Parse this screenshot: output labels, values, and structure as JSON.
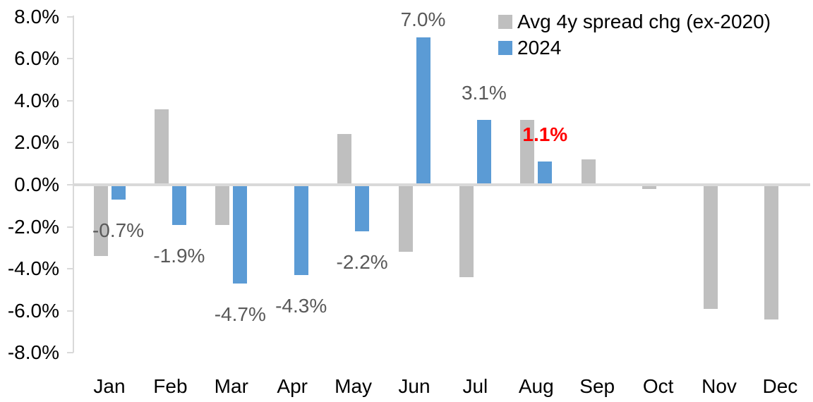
{
  "chart_data": {
    "type": "bar",
    "title": "",
    "xlabel": "",
    "ylabel": "",
    "categories": [
      "Jan",
      "Feb",
      "Mar",
      "Apr",
      "May",
      "Jun",
      "Jul",
      "Aug",
      "Sep",
      "Oct",
      "Nov",
      "Dec"
    ],
    "series": [
      {
        "name": "Avg 4y spread chg (ex-2020)",
        "color": "#BFBFBF",
        "values": [
          -3.4,
          3.6,
          -1.9,
          0.0,
          2.4,
          -3.2,
          -4.4,
          3.1,
          1.2,
          -0.2,
          -5.9,
          -6.4
        ]
      },
      {
        "name": "2024",
        "color": "#5B9BD5",
        "values": [
          -0.7,
          -1.9,
          -4.7,
          -4.3,
          -2.2,
          7.0,
          3.1,
          1.1,
          null,
          null,
          null,
          null
        ],
        "labels": [
          {
            "text": "-0.7%",
            "color": "#595959",
            "bold": false
          },
          {
            "text": "-1.9%",
            "color": "#595959",
            "bold": false
          },
          {
            "text": "-4.7%",
            "color": "#595959",
            "bold": false
          },
          {
            "text": "-4.3%",
            "color": "#595959",
            "bold": false
          },
          {
            "text": "-2.2%",
            "color": "#595959",
            "bold": false
          },
          {
            "text": "7.0%",
            "color": "#595959",
            "bold": false
          },
          {
            "text": "3.1%",
            "color": "#595959",
            "bold": false
          },
          {
            "text": "1.1%",
            "color": "#FF0000",
            "bold": true
          },
          null,
          null,
          null,
          null
        ]
      }
    ],
    "ylim": [
      -8,
      8
    ],
    "ytick_step": 2,
    "yticks": [
      {
        "value": 8,
        "label": "8.0%"
      },
      {
        "value": 6,
        "label": "6.0%"
      },
      {
        "value": 4,
        "label": "4.0%"
      },
      {
        "value": 2,
        "label": "2.0%"
      },
      {
        "value": 0,
        "label": "0.0%"
      },
      {
        "value": -2,
        "label": "-2.0%"
      },
      {
        "value": -4,
        "label": "-4.0%"
      },
      {
        "value": -6,
        "label": "-6.0%"
      },
      {
        "value": -8,
        "label": "-8.0%"
      }
    ],
    "grid": false,
    "legend_position": "top-right",
    "colors": {
      "axis_line": "#D9D9D9",
      "tick_mark": "#D9D9D9",
      "zero_line": "#D9D9D9",
      "axis_text": "#000000",
      "label_default": "#595959",
      "label_highlight": "#FF0000"
    }
  }
}
